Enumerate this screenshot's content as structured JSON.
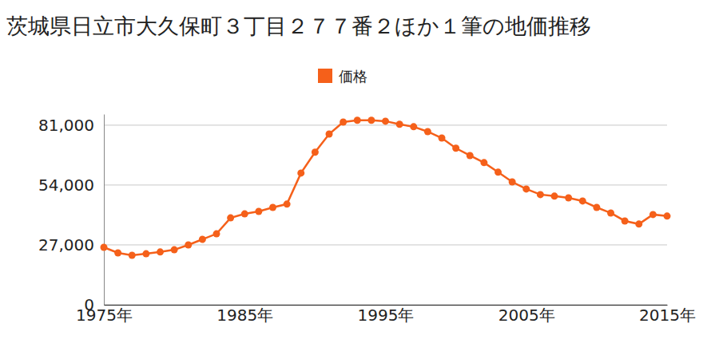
{
  "chart_data": {
    "type": "line",
    "title": "茨城県日立市大久保町３丁目２７７番２ほか１筆の地価推移",
    "x": [
      1975,
      1976,
      1977,
      1978,
      1979,
      1980,
      1981,
      1982,
      1983,
      1984,
      1985,
      1986,
      1987,
      1988,
      1989,
      1990,
      1991,
      1992,
      1993,
      1994,
      1995,
      1996,
      1997,
      1998,
      1999,
      2000,
      2001,
      2002,
      2003,
      2004,
      2005,
      2006,
      2007,
      2008,
      2009,
      2010,
      2011,
      2012,
      2013,
      2014,
      2015
    ],
    "series": [
      {
        "name": "価格",
        "color": "#f5601a",
        "marker": "circle",
        "values": [
          25900,
          23400,
          22300,
          23000,
          23800,
          24800,
          27000,
          29500,
          32000,
          39200,
          41000,
          42100,
          43900,
          45400,
          59400,
          68800,
          77000,
          82400,
          83200,
          83200,
          82800,
          81400,
          80300,
          78100,
          75200,
          70600,
          67300,
          64100,
          59800,
          55400,
          52200,
          49700,
          49000,
          48200,
          46800,
          43900,
          41400,
          37800,
          36400,
          40700,
          40000
        ]
      }
    ],
    "xlim": [
      1975,
      2015
    ],
    "xticks": [
      {
        "value": 1975,
        "label": "1975年"
      },
      {
        "value": 1985,
        "label": "1985年"
      },
      {
        "value": 1995,
        "label": "1995年"
      },
      {
        "value": 2005,
        "label": "2005年"
      },
      {
        "value": 2015,
        "label": "2015年"
      }
    ],
    "ylim": [
      0,
      86000
    ],
    "yticks": [
      0,
      {
        "value": 27000,
        "label": "27,000"
      },
      {
        "value": 54000,
        "label": "54,000"
      },
      {
        "value": 81000,
        "label": "81,000"
      }
    ],
    "grid": true,
    "legend": "top"
  }
}
